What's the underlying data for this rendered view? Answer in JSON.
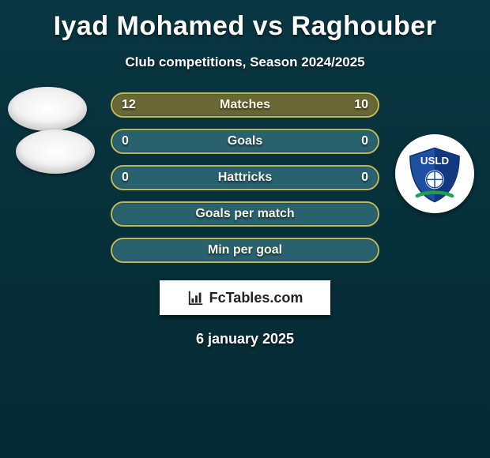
{
  "title": "Iyad Mohamed vs Raghouber",
  "subtitle": "Club competitions, Season 2024/2025",
  "date": "6 january 2025",
  "brand_text": "FcTables.com",
  "club_logo": {
    "text": "USLD",
    "primary": "#1f4fa0",
    "secondary": "#ffffff",
    "accent": "#1fa04a"
  },
  "colors": {
    "card_bg_top": "#083641",
    "card_bg_bottom": "#062a33",
    "title_color": "#ffffff",
    "row_text": "#f7f4e6",
    "brand_bg": "#ffffff",
    "brand_text": "#222222",
    "avatar_bg": "#f2f2f2"
  },
  "rows": [
    {
      "left": "12",
      "label": "Matches",
      "right": "10",
      "fill": "#696733",
      "border": "#bdb759"
    },
    {
      "left": "0",
      "label": "Goals",
      "right": "0",
      "fill": "#29616e",
      "border": "#bdb759"
    },
    {
      "left": "0",
      "label": "Hattricks",
      "right": "0",
      "fill": "#29616e",
      "border": "#bdb759"
    },
    {
      "left": "",
      "label": "Goals per match",
      "right": "",
      "fill": "#29616e",
      "border": "#bdb759"
    },
    {
      "left": "",
      "label": "Min per goal",
      "right": "",
      "fill": "#29616e",
      "border": "#bdb759"
    }
  ]
}
